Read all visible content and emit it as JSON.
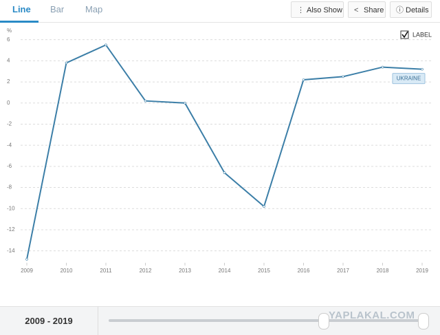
{
  "tabs": [
    "Line",
    "Bar",
    "Map"
  ],
  "buttons": [
    "Also Show",
    "Share",
    "Details"
  ],
  "chart_data": {
    "type": "line",
    "y_label": "%",
    "label_toggle": "LABEL",
    "x": [
      2009,
      2010,
      2011,
      2012,
      2013,
      2014,
      2015,
      2016,
      2017,
      2018,
      2019
    ],
    "xlim": [
      2009,
      2019
    ],
    "xticks": [
      2009,
      2010,
      2011,
      2012,
      2013,
      2014,
      2015,
      2016,
      2017,
      2018,
      2019
    ],
    "ylim": [
      -15,
      6.5
    ],
    "yticks": [
      6,
      4,
      2,
      0,
      -2,
      -4,
      -6,
      -8,
      -10,
      -12,
      -14
    ],
    "grid": true,
    "series": [
      {
        "name": "UKRAINE",
        "color": "#3b7ea7",
        "values": [
          -14.8,
          3.8,
          5.5,
          0.2,
          0.0,
          -6.6,
          -9.8,
          2.2,
          2.5,
          3.4,
          3.2
        ]
      }
    ]
  },
  "range": "2009 - 2019",
  "watermark": "YAPLAKAL.COM"
}
